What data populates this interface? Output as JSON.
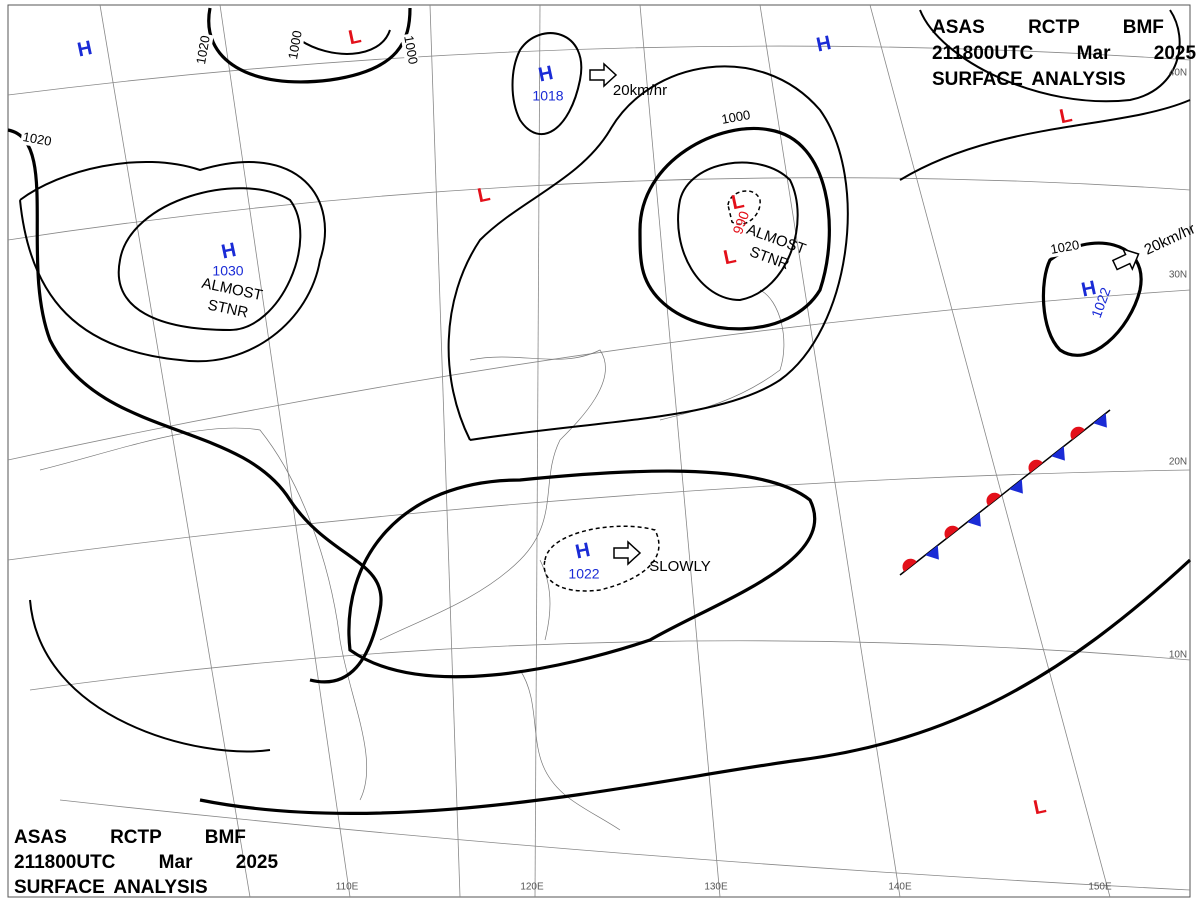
{
  "header_top": {
    "line1": "ASAS RCTP BMF",
    "line2": "211800UTC Mar 2025",
    "line3": "SURFACE ANALYSIS"
  },
  "header_bottom": {
    "line1": "ASAS RCTP BMF",
    "line2": "211800UTC Mar 2025",
    "line3": "SURFACE ANALYSIS"
  },
  "pressure_systems": [
    {
      "symbol": "H"
    },
    {
      "symbol": "L"
    },
    {
      "symbol": "H",
      "pressure": "1018"
    },
    {
      "symbol": "L"
    },
    {
      "symbol": "H",
      "pressure": "1030",
      "note": [
        "ALMOST",
        "STNR"
      ]
    },
    {
      "symbol": "L",
      "pressure": "990"
    },
    {
      "symbol": "L",
      "note": [
        "ALMOST",
        "STNR"
      ]
    },
    {
      "symbol": "H"
    },
    {
      "symbol": "L"
    },
    {
      "symbol": "H",
      "pressure": "1022"
    },
    {
      "symbol": "H",
      "pressure": "1022",
      "note": [
        "SLOWLY"
      ]
    },
    {
      "symbol": "L"
    }
  ],
  "movements": [
    "20km/hr",
    "20km/hr"
  ],
  "isobar_labels": [
    "1020",
    "1000",
    "1000",
    "1020",
    "1000",
    "1020"
  ],
  "latitude_labels": [
    "40N",
    "30N",
    "20N",
    "10N"
  ],
  "longitude_labels": [
    "110E",
    "120E",
    "130E",
    "140E",
    "150E"
  ]
}
